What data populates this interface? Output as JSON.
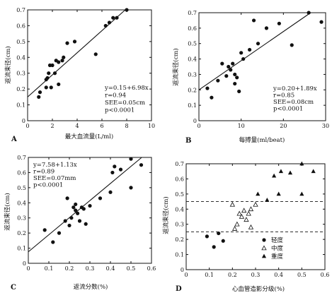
{
  "chart_data": [
    {
      "panel": "A",
      "type": "scatter",
      "xlabel": "最大血流量(L/ml)",
      "ylabel": "返流束径(cm)",
      "xlim": [
        0,
        10
      ],
      "ylim": [
        0,
        0.7
      ],
      "xticks": [
        "0",
        "2",
        "4",
        "6",
        "8",
        "10"
      ],
      "yticks": [
        "0",
        "0.1",
        "0.2",
        "0.3",
        "0.4",
        "0.5",
        "0.6",
        "0.7"
      ],
      "points": [
        [
          0.9,
          0.15
        ],
        [
          1.0,
          0.18
        ],
        [
          1.5,
          0.21
        ],
        [
          1.5,
          0.26
        ],
        [
          1.6,
          0.27
        ],
        [
          1.7,
          0.3
        ],
        [
          1.8,
          0.35
        ],
        [
          2.0,
          0.35
        ],
        [
          1.9,
          0.21
        ],
        [
          2.2,
          0.3
        ],
        [
          2.3,
          0.38
        ],
        [
          2.5,
          0.37
        ],
        [
          2.5,
          0.23
        ],
        [
          2.8,
          0.38
        ],
        [
          2.9,
          0.4
        ],
        [
          3.2,
          0.49
        ],
        [
          3.8,
          0.5
        ],
        [
          5.5,
          0.42
        ],
        [
          6.3,
          0.6
        ],
        [
          6.6,
          0.62
        ],
        [
          6.9,
          0.65
        ],
        [
          7.2,
          0.65
        ],
        [
          8.0,
          0.7
        ]
      ],
      "fit": {
        "intercept": 0.15,
        "slope": 0.0698
      },
      "annotations": [
        "y=0.15+6.98x",
        "r=0.94",
        "SEE=0.05cm",
        "p<0.0001"
      ]
    },
    {
      "panel": "B",
      "type": "scatter",
      "xlabel": "每搏量(ml/beat)",
      "ylabel": "返流束径(cm)",
      "xlim": [
        0,
        30
      ],
      "ylim": [
        0,
        0.7
      ],
      "xticks": [
        "0",
        "10",
        "20",
        "30"
      ],
      "yticks": [
        "0",
        "0.1",
        "0.2",
        "0.3",
        "0.4",
        "0.5",
        "0.6",
        "0.7"
      ],
      "points": [
        [
          2.0,
          0.21
        ],
        [
          3.0,
          0.15
        ],
        [
          4.5,
          0.26
        ],
        [
          5.5,
          0.37
        ],
        [
          6.5,
          0.29
        ],
        [
          7.0,
          0.35
        ],
        [
          7.5,
          0.33
        ],
        [
          8.0,
          0.37
        ],
        [
          8.5,
          0.24
        ],
        [
          8.5,
          0.3
        ],
        [
          9.0,
          0.28
        ],
        [
          9.5,
          0.19
        ],
        [
          10.0,
          0.44
        ],
        [
          10.5,
          0.4
        ],
        [
          12.0,
          0.46
        ],
        [
          13.0,
          0.65
        ],
        [
          14.0,
          0.5
        ],
        [
          16.0,
          0.6
        ],
        [
          19.0,
          0.63
        ],
        [
          22.0,
          0.49
        ],
        [
          26.0,
          0.7
        ],
        [
          29.0,
          0.64
        ]
      ],
      "fit": {
        "intercept": 0.2,
        "slope": 0.0189
      },
      "annotations": [
        "y=0.20+1.89x",
        "r=0.85",
        "SEE=0.08cm",
        "p<0.0001"
      ]
    },
    {
      "panel": "C",
      "type": "scatter",
      "xlabel": "返流分数(%)",
      "ylabel": "返流束径(cm)",
      "xlim": [
        0,
        0.6
      ],
      "ylim": [
        0,
        0.7
      ],
      "xticks": [
        "0",
        "0.1",
        "0.2",
        "0.3",
        "0.4",
        "0.5",
        "0.6"
      ],
      "yticks": [
        "0",
        "0.1",
        "0.2",
        "0.3",
        "0.4",
        "0.5",
        "0.6",
        "0.7"
      ],
      "points": [
        [
          0.08,
          0.22
        ],
        [
          0.12,
          0.14
        ],
        [
          0.15,
          0.2
        ],
        [
          0.18,
          0.28
        ],
        [
          0.19,
          0.43
        ],
        [
          0.2,
          0.25
        ],
        [
          0.21,
          0.3
        ],
        [
          0.22,
          0.37
        ],
        [
          0.23,
          0.39
        ],
        [
          0.23,
          0.35
        ],
        [
          0.24,
          0.33
        ],
        [
          0.25,
          0.28
        ],
        [
          0.26,
          0.37
        ],
        [
          0.27,
          0.36
        ],
        [
          0.28,
          0.26
        ],
        [
          0.3,
          0.38
        ],
        [
          0.35,
          0.43
        ],
        [
          0.4,
          0.47
        ],
        [
          0.41,
          0.6
        ],
        [
          0.42,
          0.64
        ],
        [
          0.45,
          0.62
        ],
        [
          0.5,
          0.69
        ],
        [
          0.5,
          0.5
        ],
        [
          0.55,
          0.65
        ]
      ],
      "fit": {
        "intercept": 0.0758,
        "slope": 1.13
      },
      "annotations": [
        "y=7.58+1.13x",
        "r=0.89",
        "SEE=0.07mm",
        "p<0.0001"
      ]
    },
    {
      "panel": "D",
      "type": "scatter",
      "xlabel": "心血管造影分级(%)",
      "ylabel": "返流束径(cm)",
      "xlim": [
        0,
        0.6
      ],
      "ylim": [
        0,
        0.7
      ],
      "xticks": [
        "0",
        "0.1",
        "0.2",
        "0.3",
        "0.4",
        "0.5",
        "0.6"
      ],
      "yticks": [
        "0",
        "0.1",
        "0.2",
        "0.3",
        "0.4",
        "0.5",
        "0.6",
        "0.7"
      ],
      "thresholds": [
        0.25,
        0.45
      ],
      "series": [
        {
          "name": "轻度",
          "marker": "dot",
          "points": [
            [
              0.09,
              0.22
            ],
            [
              0.12,
              0.15
            ],
            [
              0.14,
              0.24
            ],
            [
              0.16,
              0.19
            ]
          ]
        },
        {
          "name": "中度",
          "marker": "open-triangle",
          "points": [
            [
              0.2,
              0.43
            ],
            [
              0.21,
              0.27
            ],
            [
              0.22,
              0.3
            ],
            [
              0.23,
              0.37
            ],
            [
              0.24,
              0.35
            ],
            [
              0.25,
              0.39
            ],
            [
              0.26,
              0.33
            ],
            [
              0.27,
              0.37
            ],
            [
              0.28,
              0.4
            ],
            [
              0.28,
              0.28
            ],
            [
              0.3,
              0.43
            ]
          ]
        },
        {
          "name": "重度",
          "marker": "filled-triangle",
          "points": [
            [
              0.31,
              0.5
            ],
            [
              0.35,
              0.46
            ],
            [
              0.38,
              0.62
            ],
            [
              0.4,
              0.5
            ],
            [
              0.41,
              0.65
            ],
            [
              0.45,
              0.64
            ],
            [
              0.5,
              0.7
            ],
            [
              0.5,
              0.5
            ],
            [
              0.55,
              0.65
            ]
          ]
        }
      ]
    }
  ]
}
